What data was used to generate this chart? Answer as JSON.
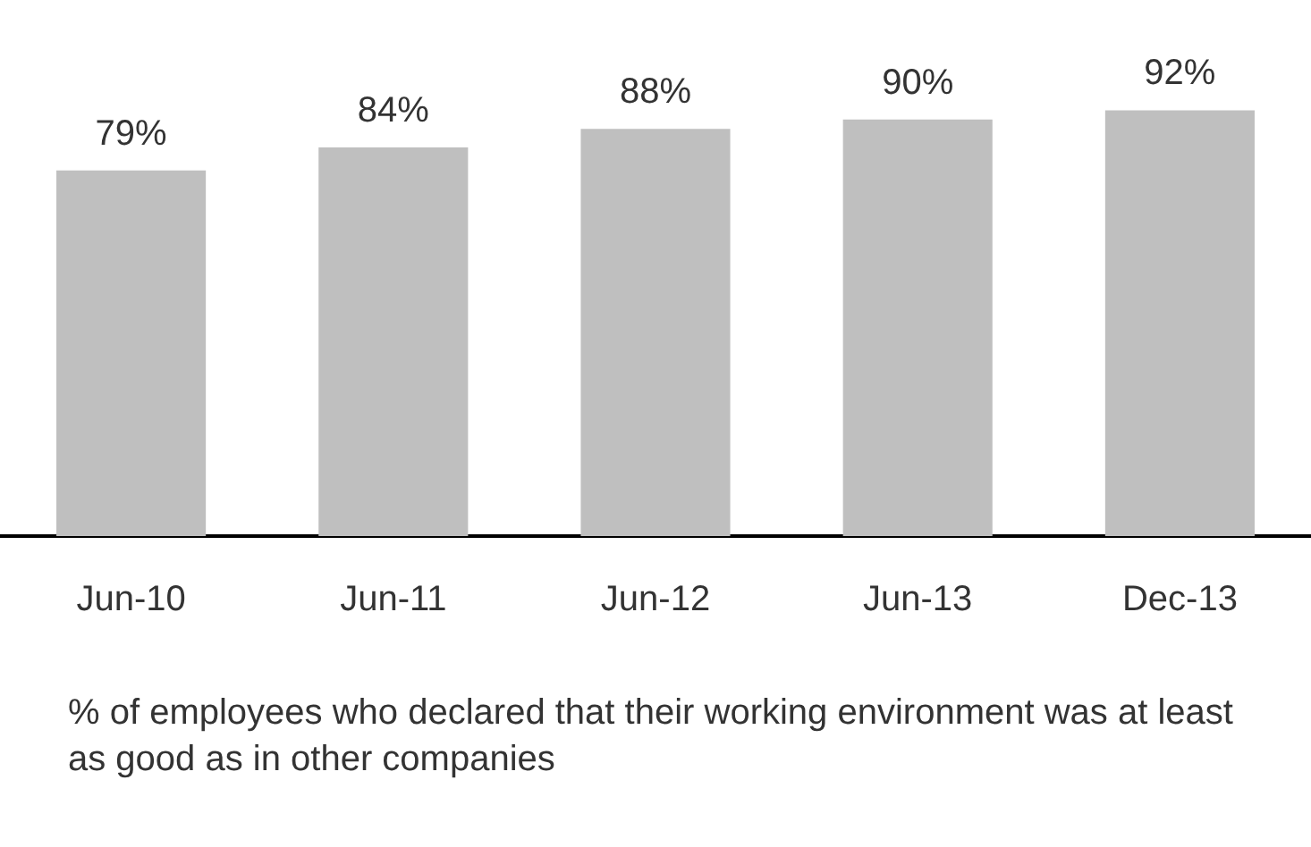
{
  "chart_data": {
    "type": "bar",
    "categories": [
      "Jun-10",
      "Jun-11",
      "Jun-12",
      "Jun-13",
      "Dec-13"
    ],
    "values": [
      79,
      84,
      88,
      90,
      92
    ],
    "color": "#bfbfbf",
    "tick_labels": "x",
    "data_labels": true,
    "value_labels": [
      "79%",
      "84%",
      "88%",
      "90%",
      "92%"
    ],
    "grid": false,
    "legend": false,
    "annotations": [
      "% of employees who declared that their working environment was at least as good as in other companies"
    ]
  }
}
